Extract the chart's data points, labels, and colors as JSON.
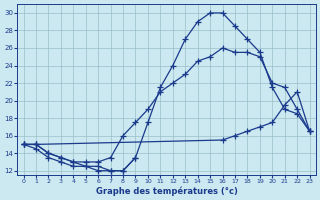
{
  "bg_color": "#cce8f0",
  "grid_color": "#9abfc8",
  "line_color": "#1a3a8c",
  "xlabel": "Graphe des températures (°c)",
  "xlim_min": -0.5,
  "xlim_max": 23.5,
  "ylim_min": 11.5,
  "ylim_max": 31.0,
  "xticks": [
    0,
    1,
    2,
    3,
    4,
    5,
    6,
    7,
    8,
    9,
    10,
    11,
    12,
    13,
    14,
    15,
    16,
    17,
    18,
    19,
    20,
    21,
    22,
    23
  ],
  "yticks": [
    12,
    14,
    16,
    18,
    20,
    22,
    24,
    26,
    28,
    30
  ],
  "series": [
    {
      "x": [
        0,
        1,
        2,
        3,
        4,
        5,
        6,
        7,
        8,
        9,
        10,
        11,
        12,
        13,
        14,
        15,
        16,
        17,
        18,
        19,
        20,
        21,
        22,
        23
      ],
      "y": [
        15.0,
        15.0,
        14.0,
        13.5,
        13.0,
        12.5,
        12.0,
        12.0,
        12.0,
        13.5,
        17.5,
        21.5,
        24.0,
        27.0,
        29.0,
        30.0,
        30.0,
        28.5,
        27.0,
        25.5,
        21.5,
        19.0,
        18.5,
        16.5
      ]
    },
    {
      "x": [
        0,
        1,
        2,
        3,
        4,
        5,
        6,
        7,
        8,
        9,
        10,
        11,
        12,
        13,
        14,
        15,
        16,
        17,
        18,
        19,
        20,
        21,
        22,
        23
      ],
      "y": [
        15.0,
        15.0,
        14.0,
        13.5,
        13.0,
        13.0,
        13.0,
        13.5,
        16.0,
        17.5,
        19.0,
        21.0,
        22.0,
        23.0,
        24.5,
        25.0,
        26.0,
        25.5,
        25.5,
        25.0,
        22.0,
        21.5,
        19.0,
        16.5
      ]
    },
    {
      "x": [
        0,
        1,
        16,
        17,
        18,
        19,
        20,
        21,
        22,
        23
      ],
      "y": [
        15.0,
        15.0,
        15.5,
        16.0,
        16.5,
        17.0,
        17.5,
        19.5,
        21.0,
        16.5
      ]
    },
    {
      "x": [
        0,
        1,
        2,
        3,
        4,
        5,
        6,
        7,
        8,
        9
      ],
      "y": [
        15.0,
        14.5,
        13.5,
        13.0,
        12.5,
        12.5,
        12.5,
        12.0,
        12.0,
        13.5
      ]
    }
  ]
}
